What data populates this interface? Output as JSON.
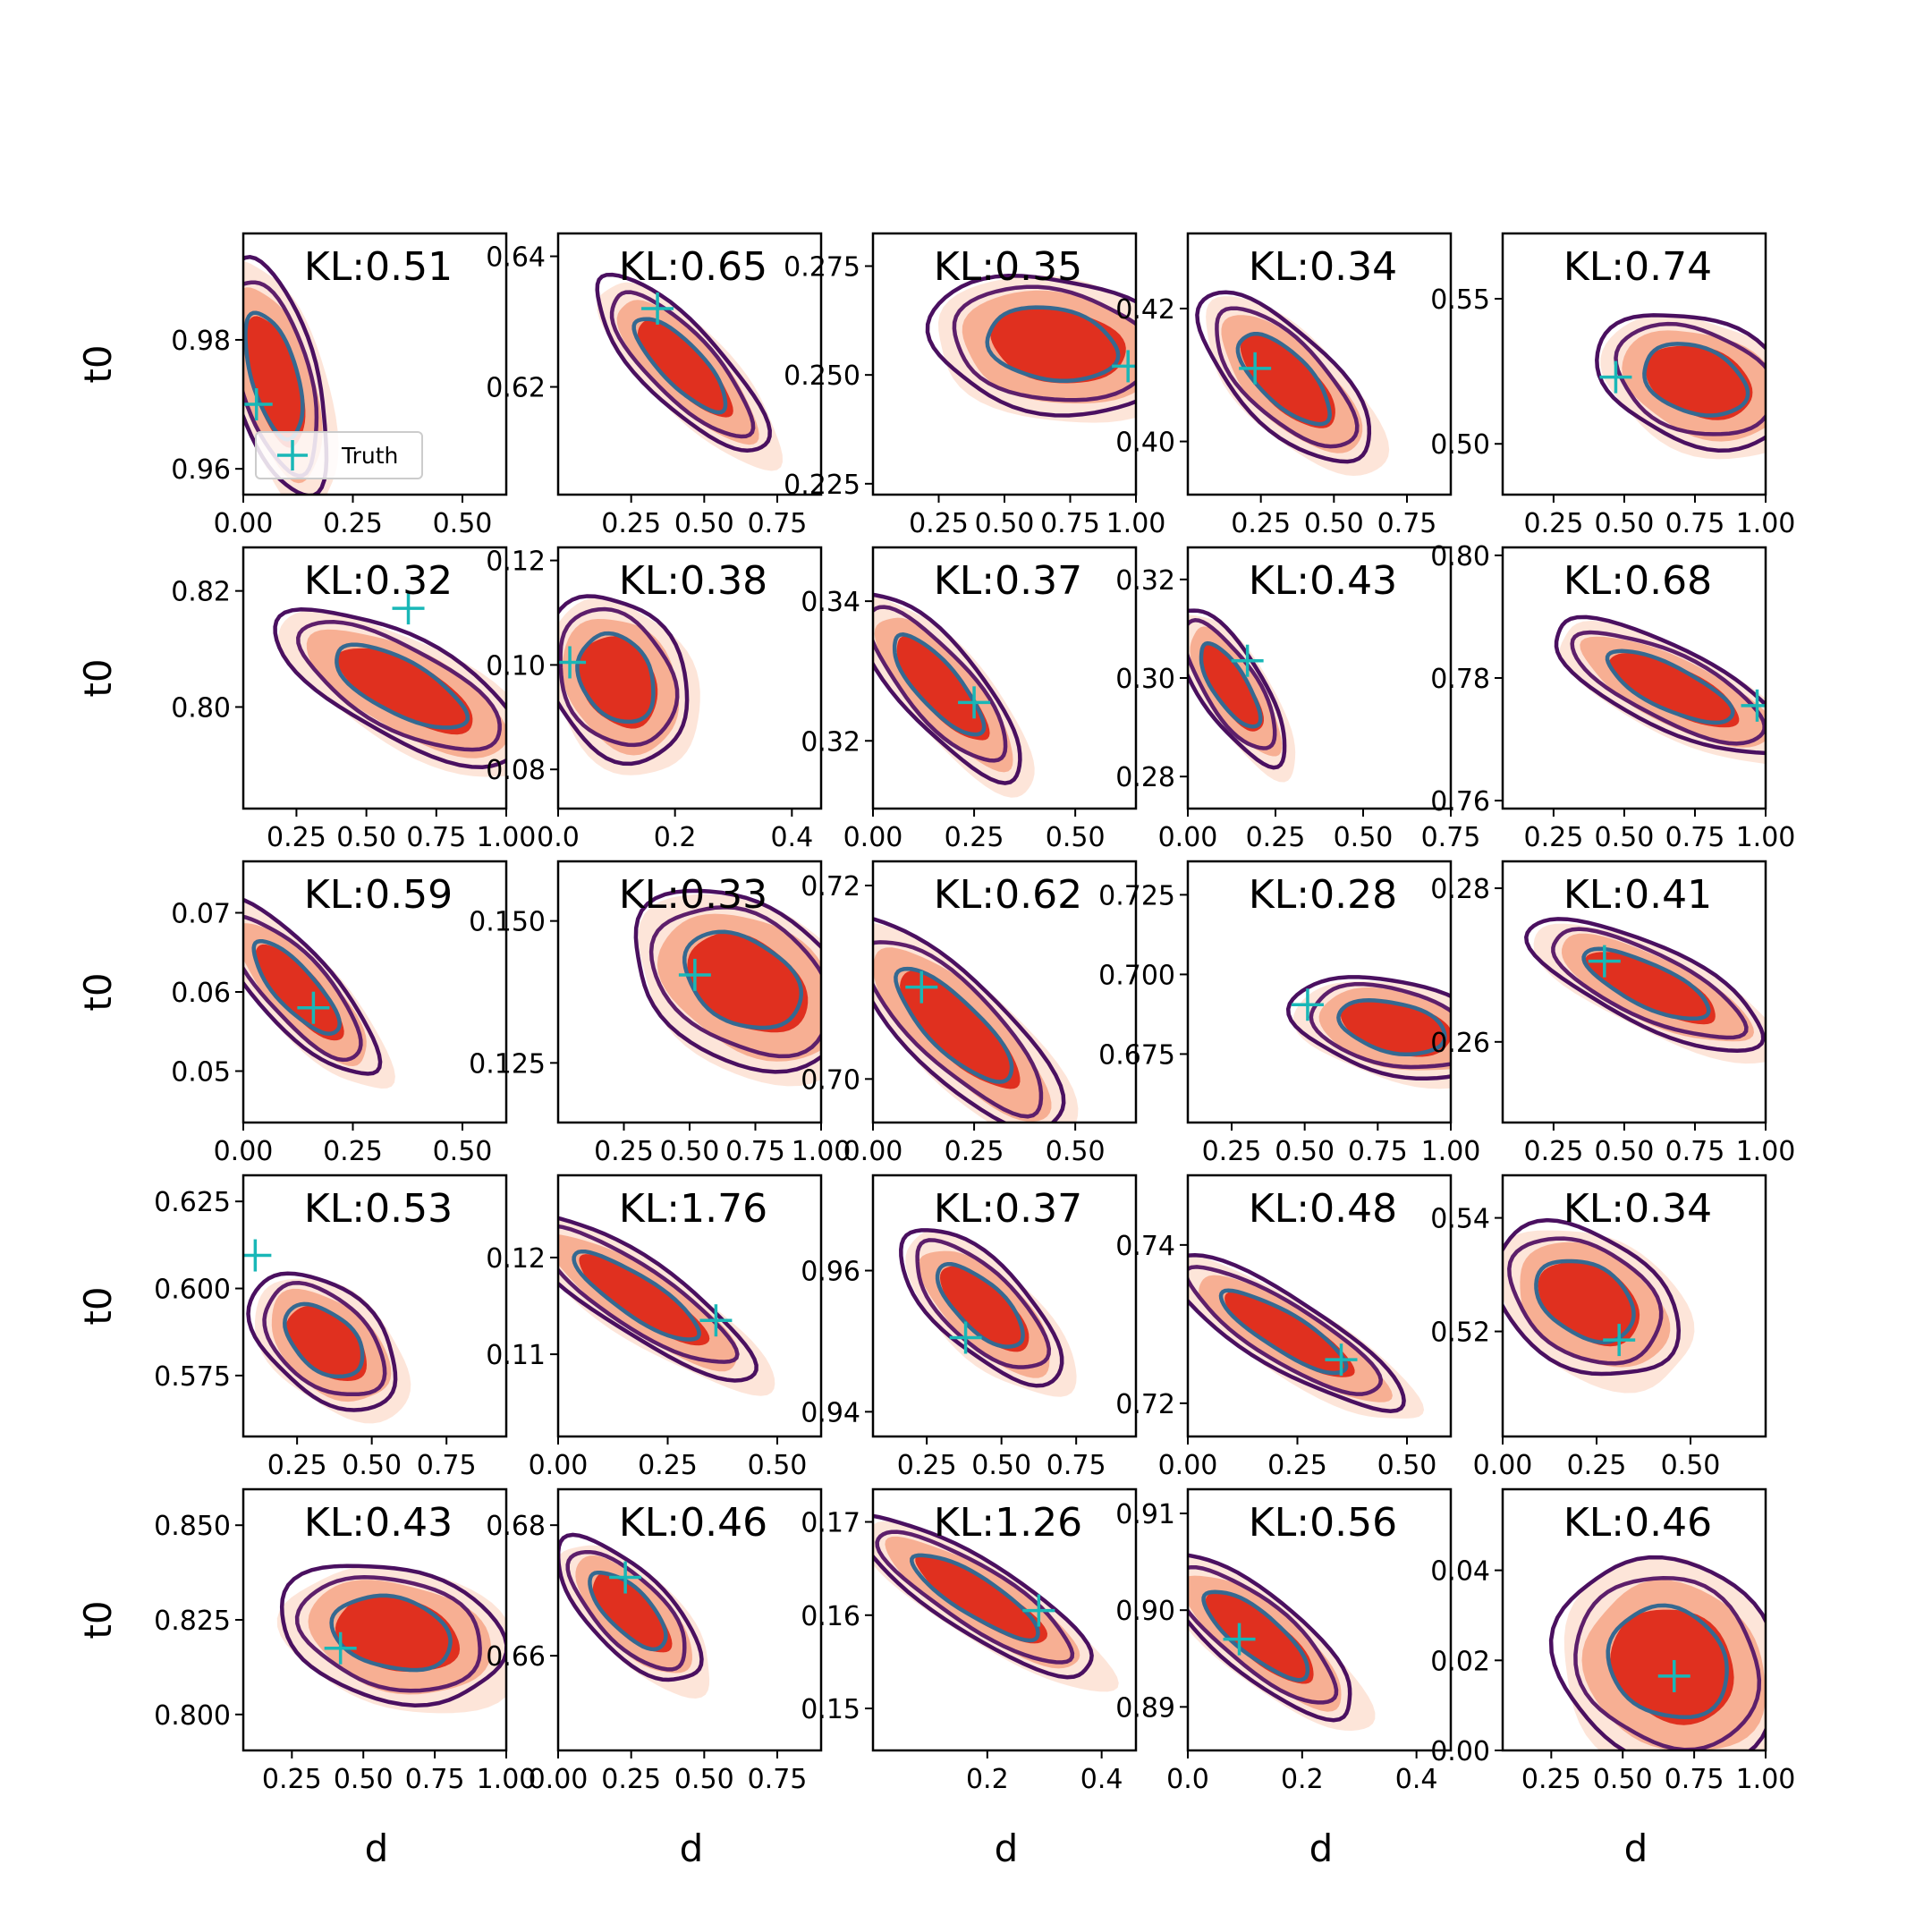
{
  "colors": {
    "fill_outer": "#fde0d2",
    "fill_mid": "#f6a98b",
    "fill_inner": "#e0301f",
    "contour_outer": "#4a1060",
    "contour_mid": "#5d1f6b",
    "contour_inner": "#356991",
    "truth_marker": "#19b7b7"
  },
  "chart_data": {
    "type": "contour-grid",
    "rows": 5,
    "cols": 5,
    "xlabel": "d",
    "ylabel": "t0",
    "legend": {
      "label": "Truth",
      "marker": "+",
      "placement": "lower-left of first panel"
    },
    "panels": [
      {
        "kl": "KL:0.51",
        "xlim": [
          0,
          0.6
        ],
        "ylim": [
          0.956,
          0.9965
        ],
        "xticks": [
          "0.00",
          "0.25",
          "0.50"
        ],
        "xtick_vals": [
          0,
          0.25,
          0.5
        ],
        "yticks": [
          "0.96",
          "0.98"
        ],
        "ytick_vals": [
          0.96,
          0.98
        ],
        "center": [
          0.07,
          0.9745
        ],
        "spread": [
          0.05,
          0.0075
        ],
        "rho": -0.55,
        "truth": [
          0.03,
          0.97
        ]
      },
      {
        "kl": "KL:0.65",
        "xlim": [
          0,
          0.9
        ],
        "ylim": [
          0.6035,
          0.6435
        ],
        "xticks": [
          "0.25",
          "0.50",
          "0.75"
        ],
        "xtick_vals": [
          0.25,
          0.5,
          0.75
        ],
        "yticks": [
          "0.62",
          "0.64"
        ],
        "ytick_vals": [
          0.62,
          0.64
        ],
        "center": [
          0.42,
          0.6235
        ],
        "spread": [
          0.12,
          0.0055
        ],
        "rho": -0.8,
        "truth": [
          0.34,
          0.632
        ]
      },
      {
        "kl": "KL:0.35",
        "xlim": [
          0,
          1
        ],
        "ylim": [
          0.2225,
          0.2825
        ],
        "xticks": [
          "0.25",
          "0.50",
          "0.75",
          "1.00"
        ],
        "xtick_vals": [
          0.25,
          0.5,
          0.75,
          1.0
        ],
        "yticks": [
          "0.225",
          "0.250",
          "0.275"
        ],
        "ytick_vals": [
          0.225,
          0.25,
          0.275
        ],
        "center": [
          0.68,
          0.257
        ],
        "spread": [
          0.19,
          0.0065
        ],
        "rho": -0.2,
        "truth": [
          0.97,
          0.252
        ]
      },
      {
        "kl": "KL:0.34",
        "xlim": [
          0,
          0.9
        ],
        "ylim": [
          0.392,
          0.4313
        ],
        "xticks": [
          "0.25",
          "0.50",
          "0.75"
        ],
        "xtick_vals": [
          0.25,
          0.5,
          0.75
        ],
        "yticks": [
          "0.40",
          "0.42"
        ],
        "ytick_vals": [
          0.4,
          0.42
        ],
        "center": [
          0.33,
          0.4095
        ],
        "spread": [
          0.12,
          0.0052
        ],
        "rho": -0.7,
        "truth": [
          0.23,
          0.411
        ]
      },
      {
        "kl": "KL:0.74",
        "xlim": [
          0.07,
          1
        ],
        "ylim": [
          0.4825,
          0.5725
        ],
        "xticks": [
          "0.25",
          "0.50",
          "0.75",
          "1.00"
        ],
        "xtick_vals": [
          0.25,
          0.5,
          0.75,
          1.0
        ],
        "yticks": [
          "0.50",
          "0.55"
        ],
        "ytick_vals": [
          0.5,
          0.55
        ],
        "center": [
          0.75,
          0.522
        ],
        "spread": [
          0.14,
          0.0095
        ],
        "rho": -0.3,
        "truth": [
          0.47,
          0.523
        ]
      },
      {
        "kl": "KL:0.32",
        "xlim": [
          0.06,
          1
        ],
        "ylim": [
          0.7825,
          0.8275
        ],
        "xticks": [
          "0.25",
          "0.50",
          "0.75",
          "1.00"
        ],
        "xtick_vals": [
          0.25,
          0.5,
          0.75,
          1.0
        ],
        "yticks": [
          "0.80",
          "0.82"
        ],
        "ytick_vals": [
          0.8,
          0.82
        ],
        "center": [
          0.62,
          0.8035
        ],
        "spread": [
          0.18,
          0.0055
        ],
        "rho": -0.7,
        "truth": [
          0.65,
          0.817
        ]
      },
      {
        "kl": "KL:0.38",
        "xlim": [
          0,
          0.45
        ],
        "ylim": [
          0.0725,
          0.1225
        ],
        "xticks": [
          "0.0",
          "0.2",
          "0.4"
        ],
        "xtick_vals": [
          0,
          0.2,
          0.4
        ],
        "yticks": [
          "0.08",
          "0.10",
          "0.12"
        ],
        "ytick_vals": [
          0.08,
          0.1,
          0.12
        ],
        "center": [
          0.1,
          0.0975
        ],
        "spread": [
          0.05,
          0.0065
        ],
        "rho": -0.25,
        "truth": [
          0.02,
          0.1005
        ]
      },
      {
        "kl": "KL:0.37",
        "xlim": [
          0,
          0.65
        ],
        "ylim": [
          0.3103,
          0.3477
        ],
        "xticks": [
          "0.00",
          "0.25",
          "0.50"
        ],
        "xtick_vals": [
          0,
          0.25,
          0.5
        ],
        "yticks": [
          "0.32",
          "0.34"
        ],
        "ytick_vals": [
          0.32,
          0.34
        ],
        "center": [
          0.16,
          0.328
        ],
        "spread": [
          0.085,
          0.0055
        ],
        "rho": -0.8,
        "truth": [
          0.25,
          0.3255
        ]
      },
      {
        "kl": "KL:0.43",
        "xlim": [
          0,
          0.75
        ],
        "ylim": [
          0.2735,
          0.3265
        ],
        "xticks": [
          "0.00",
          "0.25",
          "0.50",
          "0.75"
        ],
        "xtick_vals": [
          0,
          0.25,
          0.5,
          0.75
        ],
        "yticks": [
          "0.28",
          "0.30",
          "0.32"
        ],
        "ytick_vals": [
          0.28,
          0.3,
          0.32
        ],
        "center": [
          0.12,
          0.2985
        ],
        "spread": [
          0.065,
          0.0065
        ],
        "rho": -0.75,
        "truth": [
          0.17,
          0.3035
        ]
      },
      {
        "kl": "KL:0.68",
        "xlim": [
          0.07,
          1
        ],
        "ylim": [
          0.7587,
          0.8013
        ],
        "xticks": [
          "0.25",
          "0.50",
          "0.75",
          "1.00"
        ],
        "xtick_vals": [
          0.25,
          0.5,
          0.75,
          1.0
        ],
        "yticks": [
          "0.76",
          "0.78",
          "0.80"
        ],
        "ytick_vals": [
          0.76,
          0.78,
          0.8
        ],
        "center": [
          0.66,
          0.7785
        ],
        "spread": [
          0.17,
          0.0045
        ],
        "rho": -0.75,
        "truth": [
          0.97,
          0.7755
        ]
      },
      {
        "kl": "KL:0.59",
        "xlim": [
          0,
          0.6
        ],
        "ylim": [
          0.0435,
          0.0765
        ],
        "xticks": [
          "0.00",
          "0.25",
          "0.50"
        ],
        "xtick_vals": [
          0,
          0.25,
          0.5
        ],
        "yticks": [
          "0.05",
          "0.06",
          "0.07"
        ],
        "ytick_vals": [
          0.05,
          0.06,
          0.07
        ],
        "center": [
          0.12,
          0.0605
        ],
        "spread": [
          0.075,
          0.0045
        ],
        "rho": -0.8,
        "truth": [
          0.16,
          0.058
        ]
      },
      {
        "kl": "KL:0.33",
        "xlim": [
          0,
          1
        ],
        "ylim": [
          0.1145,
          0.1605
        ],
        "xticks": [
          "0.25",
          "0.50",
          "0.75",
          "1.00"
        ],
        "xtick_vals": [
          0.25,
          0.5,
          0.75,
          1.0
        ],
        "yticks": [
          "0.125",
          "0.150"
        ],
        "ytick_vals": [
          0.125,
          0.15
        ],
        "center": [
          0.7,
          0.1395
        ],
        "spread": [
          0.17,
          0.0065
        ],
        "rho": -0.35,
        "truth": [
          0.52,
          0.1405
        ]
      },
      {
        "kl": "KL:0.62",
        "xlim": [
          0,
          0.65
        ],
        "ylim": [
          0.6955,
          0.7225
        ],
        "xticks": [
          "0.00",
          "0.25",
          "0.50"
        ],
        "xtick_vals": [
          0,
          0.25,
          0.5
        ],
        "yticks": [
          "0.70",
          "0.72"
        ],
        "ytick_vals": [
          0.7,
          0.72
        ],
        "center": [
          0.2,
          0.7055
        ],
        "spread": [
          0.11,
          0.0045
        ],
        "rho": -0.8,
        "truth": [
          0.12,
          0.7095
        ]
      },
      {
        "kl": "KL:0.28",
        "xlim": [
          0.1,
          1
        ],
        "ylim": [
          0.6535,
          0.7355
        ],
        "xticks": [
          "0.25",
          "0.50",
          "0.75",
          "1.00"
        ],
        "xtick_vals": [
          0.25,
          0.5,
          0.75,
          1.0
        ],
        "yticks": [
          "0.675",
          "0.700",
          "0.725"
        ],
        "ytick_vals": [
          0.675,
          0.7,
          0.725
        ],
        "center": [
          0.8,
          0.6835
        ],
        "spread": [
          0.14,
          0.0065
        ],
        "rho": -0.35,
        "truth": [
          0.51,
          0.6905
        ]
      },
      {
        "kl": "KL:0.41",
        "xlim": [
          0.07,
          1
        ],
        "ylim": [
          0.2495,
          0.2835
        ],
        "xticks": [
          "0.25",
          "0.50",
          "0.75",
          "1.00"
        ],
        "xtick_vals": [
          0.25,
          0.5,
          0.75,
          1.0
        ],
        "yticks": [
          "0.26",
          "0.28"
        ],
        "ytick_vals": [
          0.26,
          0.28
        ],
        "center": [
          0.58,
          0.2675
        ],
        "spread": [
          0.17,
          0.0035
        ],
        "rho": -0.75,
        "truth": [
          0.43,
          0.2705
        ]
      },
      {
        "kl": "KL:0.53",
        "xlim": [
          0.07,
          0.95
        ],
        "ylim": [
          0.5575,
          0.6325
        ],
        "xticks": [
          "0.25",
          "0.50",
          "0.75"
        ],
        "xtick_vals": [
          0.25,
          0.5,
          0.75
        ],
        "yticks": [
          "0.575",
          "0.600",
          "0.625"
        ],
        "ytick_vals": [
          0.575,
          0.6,
          0.625
        ],
        "center": [
          0.34,
          0.585
        ],
        "spread": [
          0.1,
          0.008
        ],
        "rho": -0.45,
        "truth": [
          0.11,
          0.6095
        ]
      },
      {
        "kl": "KL:1.76",
        "xlim": [
          0,
          0.6
        ],
        "ylim": [
          0.1015,
          0.1285
        ],
        "xticks": [
          "0.00",
          "0.25",
          "0.50"
        ],
        "xtick_vals": [
          0,
          0.25,
          0.5
        ],
        "yticks": [
          "0.11",
          "0.12"
        ],
        "ytick_vals": [
          0.11,
          0.12
        ],
        "center": [
          0.18,
          0.116
        ],
        "spread": [
          0.11,
          0.0035
        ],
        "rho": -0.85,
        "truth": [
          0.36,
          0.1135
        ]
      },
      {
        "kl": "KL:0.37",
        "xlim": [
          0.07,
          0.95
        ],
        "ylim": [
          0.9365,
          0.9735
        ],
        "xticks": [
          "0.25",
          "0.50",
          "0.75"
        ],
        "xtick_vals": [
          0.25,
          0.5,
          0.75
        ],
        "yticks": [
          "0.94",
          "0.96"
        ],
        "ytick_vals": [
          0.94,
          0.96
        ],
        "center": [
          0.43,
          0.955
        ],
        "spread": [
          0.11,
          0.0045
        ],
        "rho": -0.7,
        "truth": [
          0.38,
          0.9505
        ]
      },
      {
        "kl": "KL:0.48",
        "xlim": [
          0,
          0.6
        ],
        "ylim": [
          0.7158,
          0.7488
        ],
        "xticks": [
          "0.00",
          "0.25",
          "0.50"
        ],
        "xtick_vals": [
          0,
          0.25,
          0.5
        ],
        "yticks": [
          "0.72",
          "0.74"
        ],
        "ytick_vals": [
          0.72,
          0.74
        ],
        "center": [
          0.22,
          0.729
        ],
        "spread": [
          0.11,
          0.004
        ],
        "rho": -0.85,
        "truth": [
          0.35,
          0.7255
        ]
      },
      {
        "kl": "KL:0.34",
        "xlim": [
          0,
          0.7
        ],
        "ylim": [
          0.5015,
          0.5475
        ],
        "xticks": [
          "0.00",
          "0.25",
          "0.50"
        ],
        "xtick_vals": [
          0,
          0.25,
          0.5
        ],
        "yticks": [
          "0.52",
          "0.54"
        ],
        "ytick_vals": [
          0.52,
          0.54
        ],
        "center": [
          0.22,
          0.5255
        ],
        "spread": [
          0.1,
          0.0055
        ],
        "rho": -0.35,
        "truth": [
          0.31,
          0.5185
        ]
      },
      {
        "kl": "KL:0.43",
        "xlim": [
          0.08,
          1
        ],
        "ylim": [
          0.7905,
          0.8595
        ],
        "xticks": [
          "0.25",
          "0.50",
          "0.75",
          "1.00"
        ],
        "xtick_vals": [
          0.25,
          0.5,
          0.75,
          1.0
        ],
        "yticks": [
          "0.800",
          "0.825",
          "0.850"
        ],
        "ytick_vals": [
          0.8,
          0.825,
          0.85
        ],
        "center": [
          0.6,
          0.8215
        ],
        "spread": [
          0.16,
          0.0075
        ],
        "rho": -0.25,
        "truth": [
          0.42,
          0.8175
        ]
      },
      {
        "kl": "KL:0.46",
        "xlim": [
          0,
          0.9
        ],
        "ylim": [
          0.6455,
          0.6855
        ],
        "xticks": [
          "0.00",
          "0.25",
          "0.50",
          "0.75"
        ],
        "xtick_vals": [
          0,
          0.25,
          0.5,
          0.75
        ],
        "yticks": [
          "0.66",
          "0.68"
        ],
        "ytick_vals": [
          0.66,
          0.68
        ],
        "center": [
          0.24,
          0.667
        ],
        "spread": [
          0.1,
          0.0045
        ],
        "rho": -0.7,
        "truth": [
          0.23,
          0.672
        ]
      },
      {
        "kl": "KL:1.26",
        "xlim": [
          0,
          0.46
        ],
        "ylim": [
          0.1455,
          0.1735
        ],
        "xticks": [
          "0.2",
          "0.4"
        ],
        "xtick_vals": [
          0.2,
          0.4
        ],
        "yticks": [
          "0.15",
          "0.16",
          "0.17"
        ],
        "ytick_vals": [
          0.15,
          0.16,
          0.17
        ],
        "center": [
          0.18,
          0.162
        ],
        "spread": [
          0.085,
          0.0035
        ],
        "rho": -0.85,
        "truth": [
          0.29,
          0.1605
        ]
      },
      {
        "kl": "KL:0.56",
        "xlim": [
          0,
          0.46
        ],
        "ylim": [
          0.8855,
          0.9125
        ],
        "xticks": [
          "0.0",
          "0.2",
          "0.4"
        ],
        "xtick_vals": [
          0,
          0.2,
          0.4
        ],
        "yticks": [
          "0.89",
          "0.90",
          "0.91"
        ],
        "ytick_vals": [
          0.89,
          0.9,
          0.91
        ],
        "center": [
          0.12,
          0.8975
        ],
        "spread": [
          0.07,
          0.0035
        ],
        "rho": -0.8,
        "truth": [
          0.09,
          0.897
        ]
      },
      {
        "kl": "KL:0.46",
        "xlim": [
          0.08,
          1
        ],
        "ylim": [
          0,
          0.058
        ],
        "xticks": [
          "0.25",
          "0.50",
          "0.75",
          "1.00"
        ],
        "xtick_vals": [
          0.25,
          0.5,
          0.75,
          1.0
        ],
        "yticks": [
          "0.00",
          "0.02",
          "0.04"
        ],
        "ytick_vals": [
          0,
          0.02,
          0.04
        ],
        "center": [
          0.66,
          0.0195
        ],
        "spread": [
          0.16,
          0.0095
        ],
        "rho": -0.15,
        "truth": [
          0.68,
          0.0165
        ]
      }
    ]
  }
}
